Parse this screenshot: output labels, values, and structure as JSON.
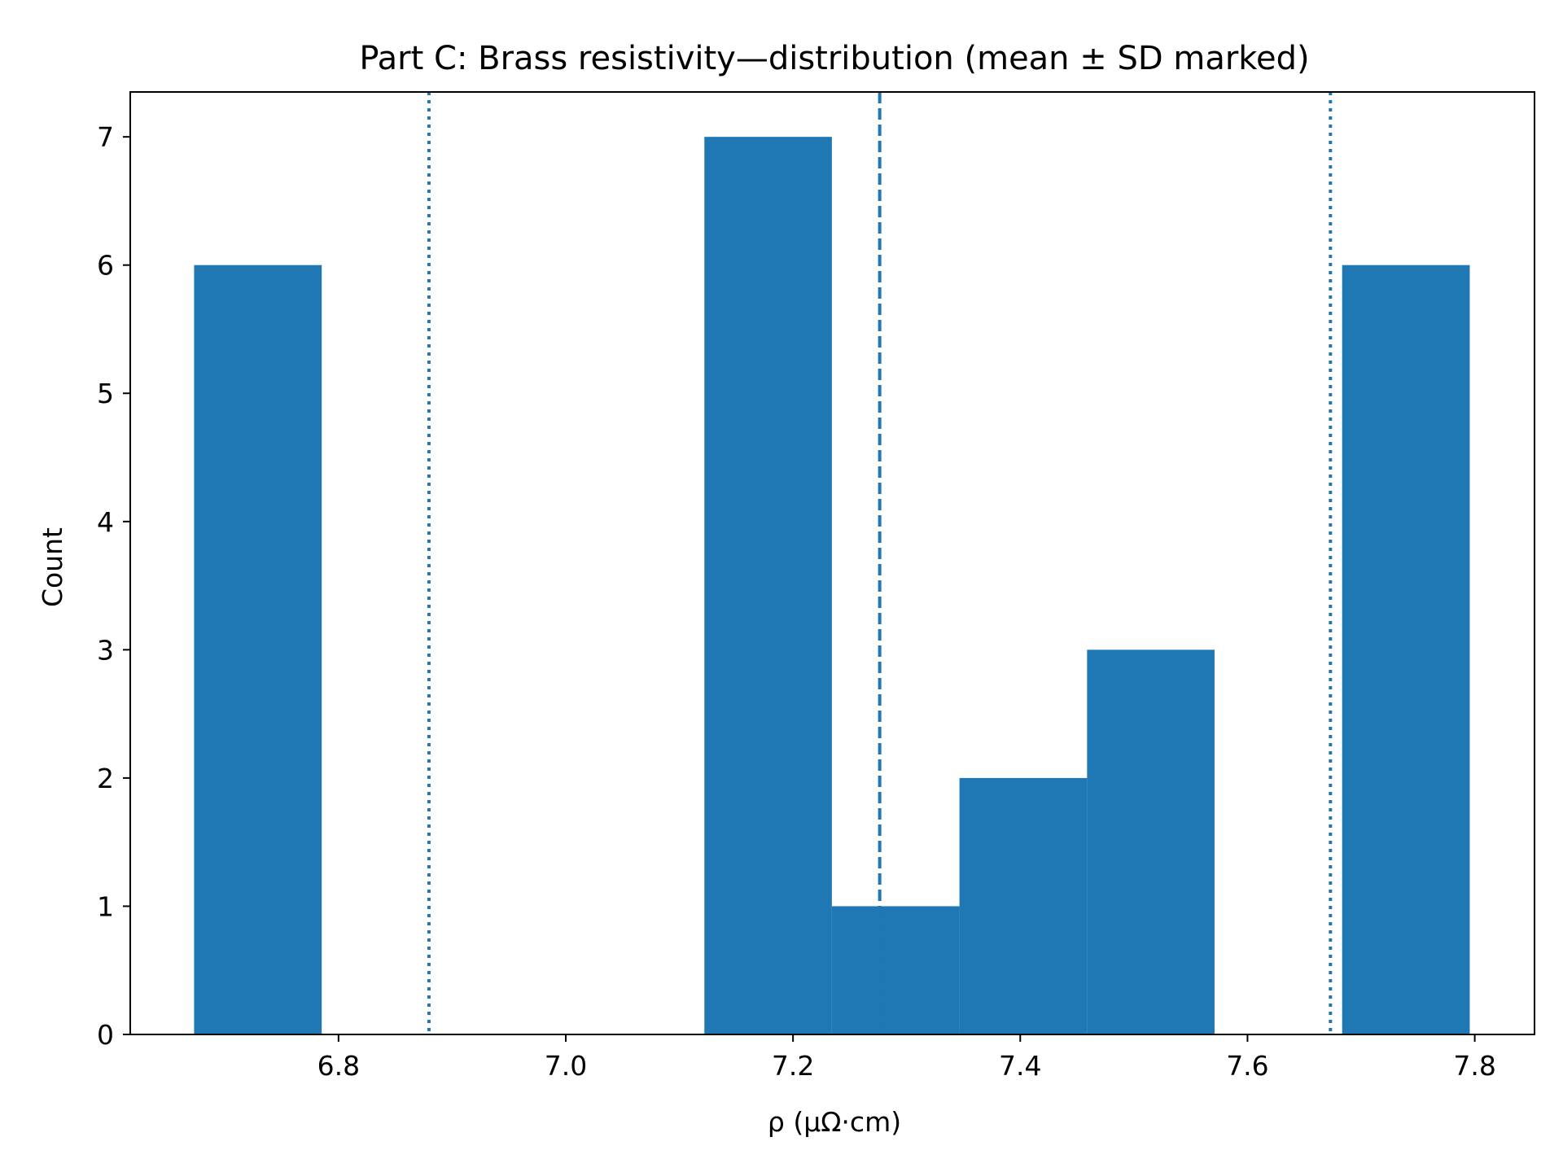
{
  "chart_data": {
    "type": "bar",
    "title": "Part C: Brass resistivity—distribution (mean ± SD marked)",
    "xlabel": "ρ (μΩ·cm)",
    "ylabel": "Count",
    "xlim": [
      6.6167,
      7.8526
    ],
    "ylim": [
      0,
      7.35
    ],
    "x_ticks": [
      "6.8",
      "7.0",
      "7.2",
      "7.4",
      "7.6",
      "7.8"
    ],
    "y_ticks": [
      "0",
      "1",
      "2",
      "3",
      "4",
      "5",
      "6",
      "7"
    ],
    "bins": [
      {
        "x0": 6.6729,
        "x1": 6.7852,
        "count": 6
      },
      {
        "x0": 6.7852,
        "x1": 6.8974,
        "count": 0
      },
      {
        "x0": 6.8974,
        "x1": 7.0097,
        "count": 0
      },
      {
        "x0": 7.0097,
        "x1": 7.122,
        "count": 0
      },
      {
        "x0": 7.122,
        "x1": 7.2342,
        "count": 7
      },
      {
        "x0": 7.2342,
        "x1": 7.3465,
        "count": 1
      },
      {
        "x0": 7.3465,
        "x1": 7.4588,
        "count": 2
      },
      {
        "x0": 7.4588,
        "x1": 7.571,
        "count": 3
      },
      {
        "x0": 7.571,
        "x1": 7.6833,
        "count": 0
      },
      {
        "x0": 7.6833,
        "x1": 7.7956,
        "count": 6
      }
    ],
    "mean": 7.2763,
    "sd": 0.3967,
    "reference_lines": [
      {
        "name": "mean",
        "x": 7.2763,
        "style": "dashed"
      },
      {
        "name": "mean-sd",
        "x": 6.8796,
        "style": "dotted"
      },
      {
        "name": "mean+sd",
        "x": 7.673,
        "style": "dotted"
      }
    ],
    "grid": false,
    "color": "#1f77b4"
  }
}
